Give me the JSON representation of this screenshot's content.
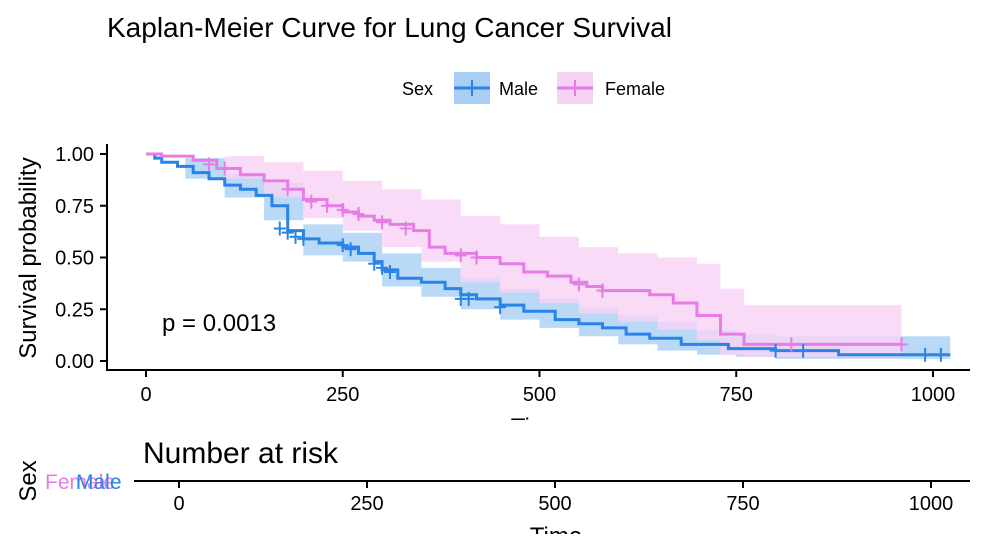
{
  "chart_data": [
    {
      "type": "line",
      "subtype": "kaplan-meier",
      "title": "Kaplan-Meier Curve for Lung Cancer Survival",
      "xlabel": "Time",
      "ylabel": "Survival probability",
      "xlim": [
        0,
        1022
      ],
      "ylim": [
        0,
        1
      ],
      "xticks": [
        "0",
        "250",
        "500",
        "750",
        "1000"
      ],
      "yticks": [
        "0.00",
        "0.25",
        "0.50",
        "0.75",
        "1.00"
      ],
      "grid": false,
      "legend": {
        "title": "Sex",
        "position": "top"
      },
      "annotation": "p = 0.0013",
      "confidence_bands": true,
      "series": [
        {
          "name": "Male",
          "color": "#2884E6",
          "band_color": "#A9CFF5",
          "points": [
            [
              0,
              1.0
            ],
            [
              11,
              0.98
            ],
            [
              20,
              0.96
            ],
            [
              40,
              0.94
            ],
            [
              60,
              0.91
            ],
            [
              80,
              0.88
            ],
            [
              100,
              0.85
            ],
            [
              120,
              0.83
            ],
            [
              140,
              0.8
            ],
            [
              160,
              0.75
            ],
            [
              180,
              0.63
            ],
            [
              200,
              0.59
            ],
            [
              220,
              0.57
            ],
            [
              250,
              0.55
            ],
            [
              270,
              0.52
            ],
            [
              290,
              0.48
            ],
            [
              300,
              0.44
            ],
            [
              320,
              0.4
            ],
            [
              350,
              0.38
            ],
            [
              380,
              0.35
            ],
            [
              400,
              0.32
            ],
            [
              420,
              0.3
            ],
            [
              450,
              0.27
            ],
            [
              480,
              0.24
            ],
            [
              520,
              0.2
            ],
            [
              550,
              0.18
            ],
            [
              580,
              0.16
            ],
            [
              610,
              0.13
            ],
            [
              640,
              0.11
            ],
            [
              680,
              0.08
            ],
            [
              740,
              0.06
            ],
            [
              800,
              0.05
            ],
            [
              880,
              0.03
            ],
            [
              1022,
              0.03
            ]
          ],
          "upper": [
            [
              0,
              1.0
            ],
            [
              50,
              0.98
            ],
            [
              100,
              0.91
            ],
            [
              150,
              0.86
            ],
            [
              200,
              0.66
            ],
            [
              250,
              0.62
            ],
            [
              300,
              0.52
            ],
            [
              350,
              0.45
            ],
            [
              400,
              0.4
            ],
            [
              450,
              0.35
            ],
            [
              500,
              0.3
            ],
            [
              550,
              0.26
            ],
            [
              600,
              0.22
            ],
            [
              650,
              0.19
            ],
            [
              700,
              0.15
            ],
            [
              750,
              0.13
            ],
            [
              800,
              0.12
            ],
            [
              1022,
              0.12
            ]
          ],
          "lower": [
            [
              0,
              1.0
            ],
            [
              50,
              0.88
            ],
            [
              100,
              0.79
            ],
            [
              150,
              0.68
            ],
            [
              200,
              0.51
            ],
            [
              250,
              0.48
            ],
            [
              300,
              0.36
            ],
            [
              350,
              0.31
            ],
            [
              400,
              0.25
            ],
            [
              450,
              0.2
            ],
            [
              500,
              0.16
            ],
            [
              550,
              0.12
            ],
            [
              600,
              0.08
            ],
            [
              650,
              0.05
            ],
            [
              700,
              0.03
            ],
            [
              750,
              0.02
            ],
            [
              800,
              0.01
            ],
            [
              1022,
              0.01
            ]
          ],
          "censored": [
            [
              170,
              0.64
            ],
            [
              180,
              0.62
            ],
            [
              190,
              0.6
            ],
            [
              200,
              0.59
            ],
            [
              250,
              0.56
            ],
            [
              260,
              0.54
            ],
            [
              290,
              0.47
            ],
            [
              300,
              0.45
            ],
            [
              310,
              0.43
            ],
            [
              400,
              0.3
            ],
            [
              410,
              0.3
            ],
            [
              450,
              0.26
            ],
            [
              800,
              0.05
            ],
            [
              835,
              0.05
            ],
            [
              990,
              0.03
            ],
            [
              1010,
              0.03
            ]
          ]
        },
        {
          "name": "Female",
          "color": "#E67DE6",
          "band_color": "#F7D2F5",
          "points": [
            [
              0,
              1.0
            ],
            [
              20,
              0.99
            ],
            [
              60,
              0.97
            ],
            [
              90,
              0.93
            ],
            [
              120,
              0.9
            ],
            [
              150,
              0.87
            ],
            [
              180,
              0.83
            ],
            [
              200,
              0.78
            ],
            [
              230,
              0.75
            ],
            [
              250,
              0.72
            ],
            [
              270,
              0.7
            ],
            [
              290,
              0.68
            ],
            [
              310,
              0.66
            ],
            [
              340,
              0.63
            ],
            [
              360,
              0.55
            ],
            [
              380,
              0.52
            ],
            [
              420,
              0.5
            ],
            [
              450,
              0.47
            ],
            [
              480,
              0.43
            ],
            [
              510,
              0.41
            ],
            [
              540,
              0.38
            ],
            [
              560,
              0.36
            ],
            [
              580,
              0.34
            ],
            [
              640,
              0.32
            ],
            [
              670,
              0.28
            ],
            [
              700,
              0.22
            ],
            [
              730,
              0.13
            ],
            [
              760,
              0.08
            ],
            [
              960,
              0.08
            ]
          ],
          "upper": [
            [
              0,
              1.0
            ],
            [
              100,
              0.99
            ],
            [
              150,
              0.96
            ],
            [
              200,
              0.92
            ],
            [
              250,
              0.87
            ],
            [
              300,
              0.83
            ],
            [
              350,
              0.78
            ],
            [
              400,
              0.7
            ],
            [
              450,
              0.66
            ],
            [
              500,
              0.6
            ],
            [
              550,
              0.55
            ],
            [
              600,
              0.52
            ],
            [
              650,
              0.5
            ],
            [
              700,
              0.47
            ],
            [
              730,
              0.35
            ],
            [
              760,
              0.27
            ],
            [
              960,
              0.27
            ]
          ],
          "lower": [
            [
              0,
              1.0
            ],
            [
              100,
              0.88
            ],
            [
              150,
              0.79
            ],
            [
              200,
              0.69
            ],
            [
              250,
              0.63
            ],
            [
              300,
              0.55
            ],
            [
              350,
              0.48
            ],
            [
              400,
              0.38
            ],
            [
              450,
              0.33
            ],
            [
              500,
              0.28
            ],
            [
              550,
              0.23
            ],
            [
              600,
              0.19
            ],
            [
              650,
              0.15
            ],
            [
              700,
              0.1
            ],
            [
              730,
              0.03
            ],
            [
              760,
              0.02
            ],
            [
              960,
              0.02
            ]
          ],
          "censored": [
            [
              80,
              0.95
            ],
            [
              100,
              0.93
            ],
            [
              180,
              0.83
            ],
            [
              210,
              0.77
            ],
            [
              230,
              0.75
            ],
            [
              250,
              0.73
            ],
            [
              270,
              0.71
            ],
            [
              300,
              0.67
            ],
            [
              330,
              0.64
            ],
            [
              400,
              0.51
            ],
            [
              420,
              0.5
            ],
            [
              550,
              0.37
            ],
            [
              580,
              0.34
            ],
            [
              820,
              0.08
            ],
            [
              960,
              0.08
            ]
          ]
        }
      ]
    },
    {
      "type": "table",
      "title": "Number at risk",
      "xlabel": "Time",
      "ylabel": "Sex",
      "xticks": [
        "0",
        "250",
        "500",
        "750",
        "1000"
      ],
      "row_labels": [
        {
          "text": "Female",
          "color": "#E67DE6"
        },
        {
          "text": "Male",
          "color": "#2884E6"
        }
      ]
    }
  ]
}
